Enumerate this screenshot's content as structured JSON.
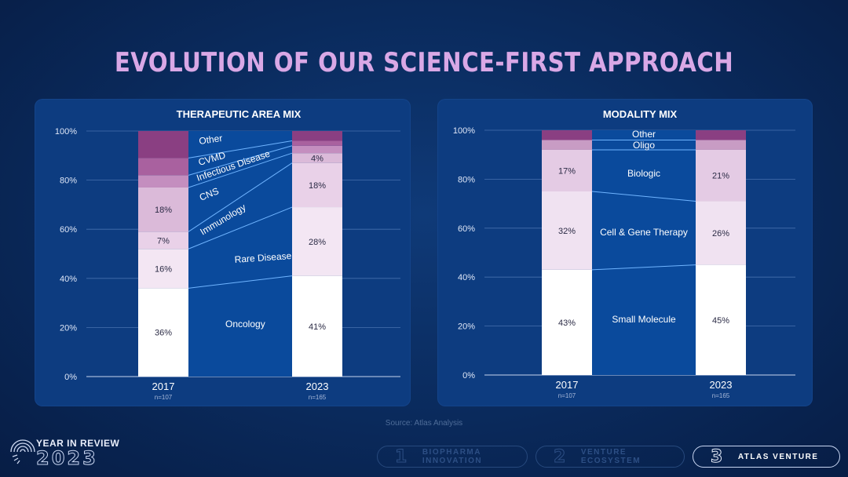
{
  "title": "EVOLUTION OF OUR SCIENCE-FIRST APPROACH",
  "source": "Source: Atlas Analysis",
  "footer": {
    "logo_line1": "YEAR IN REVIEW",
    "logo_line2": "2023",
    "nav": [
      {
        "num": "1",
        "label": "BIOPHARMA INNOVATION",
        "active": false
      },
      {
        "num": "2",
        "label": "VENTURE ECOSYSTEM",
        "active": false
      },
      {
        "num": "3",
        "label": "ATLAS VENTURE",
        "active": true
      }
    ]
  },
  "colors": {
    "background": "#0a2a5c",
    "panel": "#0d3c80",
    "title": "#d9a8e6",
    "flow_area": "#0a4a9c"
  },
  "chart_data": [
    {
      "type": "bar",
      "subtype": "stacked-100",
      "title": "THERAPEUTIC AREA MIX",
      "categories": [
        "2017",
        "2023"
      ],
      "n_labels": [
        "n=107",
        "n=165"
      ],
      "y_ticks": [
        "0%",
        "20%",
        "40%",
        "60%",
        "80%",
        "100%"
      ],
      "ylim": [
        0,
        100
      ],
      "grid": true,
      "series": [
        {
          "name": "Oncology",
          "values": [
            36,
            41
          ],
          "labels": [
            "36%",
            "41%"
          ],
          "color": "#ffffff"
        },
        {
          "name": "Rare Disease",
          "values": [
            16,
            28
          ],
          "labels": [
            "16%",
            "28%"
          ],
          "color": "#f3e6f3"
        },
        {
          "name": "Immunology",
          "values": [
            7,
            18
          ],
          "labels": [
            "7%",
            "18%"
          ],
          "color": "#e9d1e8"
        },
        {
          "name": "CNS",
          "values": [
            18,
            4
          ],
          "labels": [
            "18%",
            "4%"
          ],
          "color": "#dbbad9"
        },
        {
          "name": "Infectious Disease",
          "values": [
            5,
            3
          ],
          "labels": [
            "",
            ""
          ],
          "color": "#c48ebf"
        },
        {
          "name": "CVMD",
          "values": [
            7,
            2
          ],
          "labels": [
            "",
            ""
          ],
          "color": "#a9619f"
        },
        {
          "name": "Other",
          "values": [
            11,
            4
          ],
          "labels": [
            "",
            ""
          ],
          "color": "#8a3f82"
        }
      ]
    },
    {
      "type": "bar",
      "subtype": "stacked-100",
      "title": "MODALITY MIX",
      "categories": [
        "2017",
        "2023"
      ],
      "n_labels": [
        "n=107",
        "n=165"
      ],
      "y_ticks": [
        "0%",
        "20%",
        "40%",
        "60%",
        "80%",
        "100%"
      ],
      "ylim": [
        0,
        100
      ],
      "grid": true,
      "series": [
        {
          "name": "Small Molecule",
          "values": [
            43,
            45
          ],
          "labels": [
            "43%",
            "45%"
          ],
          "color": "#ffffff"
        },
        {
          "name": "Cell & Gene Therapy",
          "values": [
            32,
            26
          ],
          "labels": [
            "32%",
            "26%"
          ],
          "color": "#f0e2f1"
        },
        {
          "name": "Biologic",
          "values": [
            17,
            21
          ],
          "labels": [
            "17%",
            "21%"
          ],
          "color": "#e4cbe4"
        },
        {
          "name": "Oligo",
          "values": [
            4,
            4
          ],
          "labels": [
            "",
            ""
          ],
          "color": "#c89cc4"
        },
        {
          "name": "Other",
          "values": [
            4,
            4
          ],
          "labels": [
            "",
            ""
          ],
          "color": "#8a3f82"
        }
      ]
    }
  ]
}
